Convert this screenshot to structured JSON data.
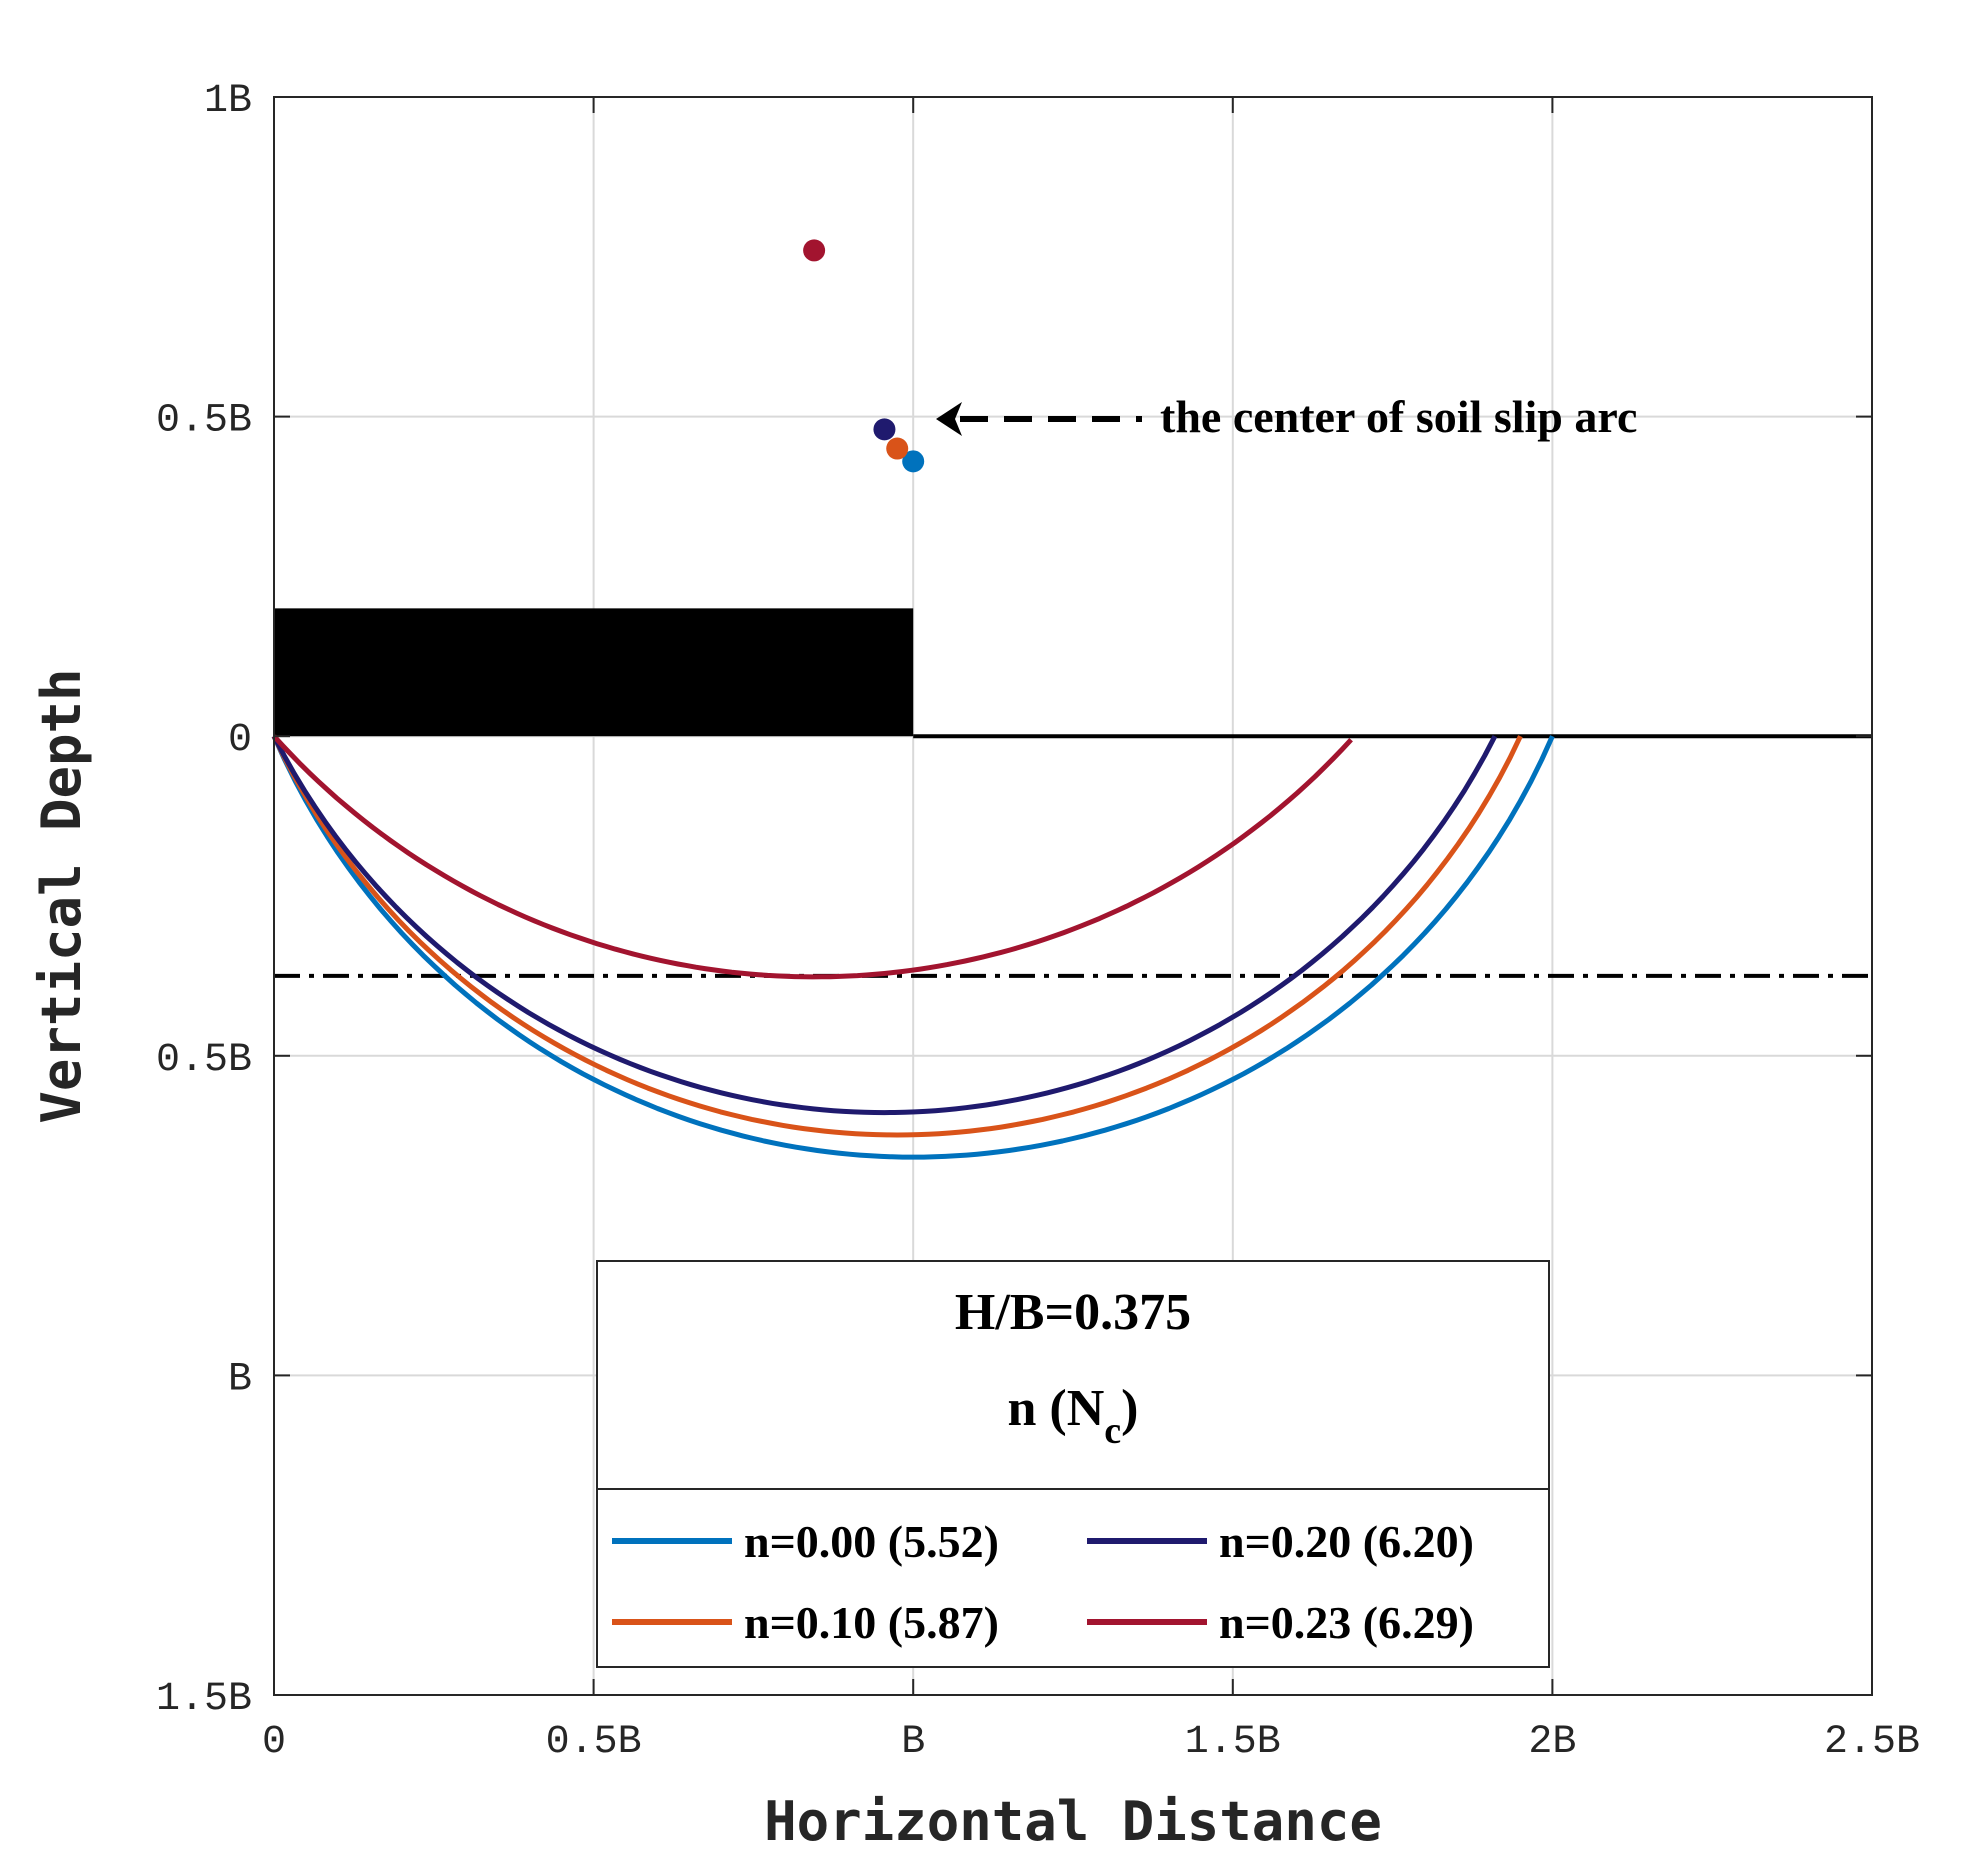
{
  "chart_data": {
    "type": "line",
    "xlabel": "Horizontal Distance",
    "ylabel": "Vertical Depth",
    "xlim": [
      0,
      2.5
    ],
    "ylim": [
      -1.5,
      1.0
    ],
    "x_ticks": [
      {
        "value": 0,
        "label": "0"
      },
      {
        "value": 0.5,
        "label": "0.5B"
      },
      {
        "value": 1.0,
        "label": "B"
      },
      {
        "value": 1.5,
        "label": "1.5B"
      },
      {
        "value": 2.0,
        "label": "2B"
      },
      {
        "value": 2.5,
        "label": "2.5B"
      }
    ],
    "y_ticks": [
      {
        "value": 1.0,
        "label": "1B"
      },
      {
        "value": 0.5,
        "label": "0.5B"
      },
      {
        "value": 0,
        "label": "0"
      },
      {
        "value": -0.5,
        "label": "0.5B"
      },
      {
        "value": -1.0,
        "label": "B"
      },
      {
        "value": -1.5,
        "label": "1.5B"
      }
    ],
    "grid": true,
    "footing": {
      "x_start": 0,
      "x_end": 1.0,
      "height": 0.2,
      "color": "#000000"
    },
    "ground_line": {
      "y": 0,
      "x_start": 1.0,
      "x_end": 2.5
    },
    "reference_depth_line": {
      "y": -0.375,
      "style": "dash-dot"
    },
    "series": [
      {
        "name": "n=0.00 (5.52)",
        "color": "#0072BD",
        "arc_start_x": 0,
        "arc_end_x": 2.0,
        "center": [
          1.0,
          0.43
        ]
      },
      {
        "name": "n=0.10 (5.87)",
        "color": "#D95319",
        "arc_start_x": 0,
        "arc_end_x": 1.95,
        "center": [
          0.975,
          0.45
        ]
      },
      {
        "name": "n=0.20 (6.20)",
        "color": "#1F1A6E",
        "arc_start_x": 0,
        "arc_end_x": 1.91,
        "center": [
          0.955,
          0.48
        ]
      },
      {
        "name": "n=0.23 (6.29)",
        "color": "#A2142F",
        "arc_start_x": 0,
        "arc_end_x": 1.685,
        "center": [
          0.845,
          0.76
        ]
      }
    ],
    "annotation": {
      "text": "the center of soil slip arc",
      "arrow_to": [
        1.03,
        0.5
      ]
    },
    "legend": {
      "position": "bottom-center",
      "title_line1": "H/B=0.375",
      "title_line2_main": "n (N",
      "title_line2_sub": "c",
      "title_line2_end": ")",
      "columns": 2
    }
  }
}
